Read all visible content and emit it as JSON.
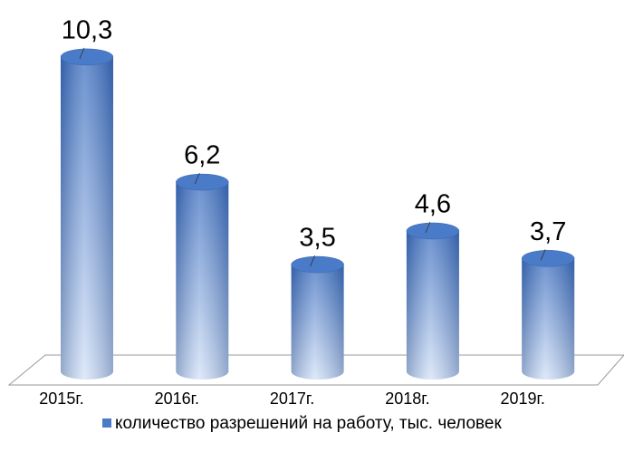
{
  "chart_data": {
    "type": "bar",
    "categories": [
      "2015г.",
      "2016г.",
      "2017г.",
      "2018г.",
      "2019г."
    ],
    "series": [
      {
        "name": "количество разрешений на работу, тыс. человек",
        "color": "#4a7bc8",
        "values": [
          10.3,
          6.2,
          3.5,
          4.6,
          3.7
        ],
        "value_labels": [
          "10,3",
          "6,2",
          "3,5",
          "4,6",
          "3,7"
        ]
      }
    ],
    "legend": "bottom"
  }
}
